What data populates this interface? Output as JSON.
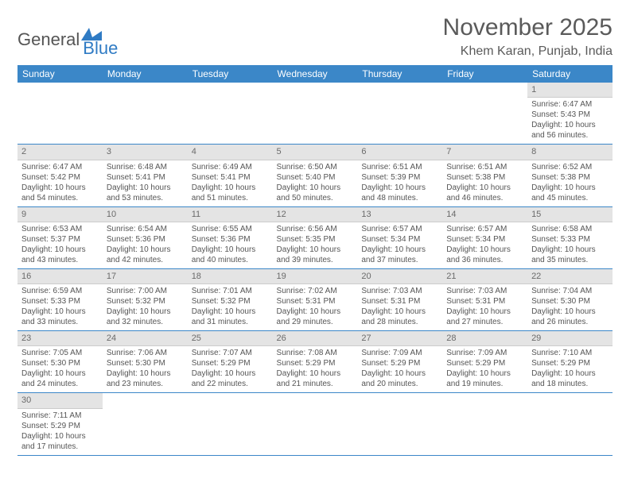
{
  "logo": {
    "general": "General",
    "blue": "Blue"
  },
  "title": "November 2025",
  "location": "Khem Karan, Punjab, India",
  "colors": {
    "header_bg": "#3b87c8",
    "header_text": "#ffffff",
    "daynum_bg": "#e4e4e4",
    "cell_border": "#3b87c8",
    "text": "#555555"
  },
  "day_names": [
    "Sunday",
    "Monday",
    "Tuesday",
    "Wednesday",
    "Thursday",
    "Friday",
    "Saturday"
  ],
  "weeks": [
    [
      {
        "empty": true
      },
      {
        "empty": true
      },
      {
        "empty": true
      },
      {
        "empty": true
      },
      {
        "empty": true
      },
      {
        "empty": true
      },
      {
        "num": "1",
        "sunrise": "Sunrise: 6:47 AM",
        "sunset": "Sunset: 5:43 PM",
        "daylight": "Daylight: 10 hours and 56 minutes."
      }
    ],
    [
      {
        "num": "2",
        "sunrise": "Sunrise: 6:47 AM",
        "sunset": "Sunset: 5:42 PM",
        "daylight": "Daylight: 10 hours and 54 minutes."
      },
      {
        "num": "3",
        "sunrise": "Sunrise: 6:48 AM",
        "sunset": "Sunset: 5:41 PM",
        "daylight": "Daylight: 10 hours and 53 minutes."
      },
      {
        "num": "4",
        "sunrise": "Sunrise: 6:49 AM",
        "sunset": "Sunset: 5:41 PM",
        "daylight": "Daylight: 10 hours and 51 minutes."
      },
      {
        "num": "5",
        "sunrise": "Sunrise: 6:50 AM",
        "sunset": "Sunset: 5:40 PM",
        "daylight": "Daylight: 10 hours and 50 minutes."
      },
      {
        "num": "6",
        "sunrise": "Sunrise: 6:51 AM",
        "sunset": "Sunset: 5:39 PM",
        "daylight": "Daylight: 10 hours and 48 minutes."
      },
      {
        "num": "7",
        "sunrise": "Sunrise: 6:51 AM",
        "sunset": "Sunset: 5:38 PM",
        "daylight": "Daylight: 10 hours and 46 minutes."
      },
      {
        "num": "8",
        "sunrise": "Sunrise: 6:52 AM",
        "sunset": "Sunset: 5:38 PM",
        "daylight": "Daylight: 10 hours and 45 minutes."
      }
    ],
    [
      {
        "num": "9",
        "sunrise": "Sunrise: 6:53 AM",
        "sunset": "Sunset: 5:37 PM",
        "daylight": "Daylight: 10 hours and 43 minutes."
      },
      {
        "num": "10",
        "sunrise": "Sunrise: 6:54 AM",
        "sunset": "Sunset: 5:36 PM",
        "daylight": "Daylight: 10 hours and 42 minutes."
      },
      {
        "num": "11",
        "sunrise": "Sunrise: 6:55 AM",
        "sunset": "Sunset: 5:36 PM",
        "daylight": "Daylight: 10 hours and 40 minutes."
      },
      {
        "num": "12",
        "sunrise": "Sunrise: 6:56 AM",
        "sunset": "Sunset: 5:35 PM",
        "daylight": "Daylight: 10 hours and 39 minutes."
      },
      {
        "num": "13",
        "sunrise": "Sunrise: 6:57 AM",
        "sunset": "Sunset: 5:34 PM",
        "daylight": "Daylight: 10 hours and 37 minutes."
      },
      {
        "num": "14",
        "sunrise": "Sunrise: 6:57 AM",
        "sunset": "Sunset: 5:34 PM",
        "daylight": "Daylight: 10 hours and 36 minutes."
      },
      {
        "num": "15",
        "sunrise": "Sunrise: 6:58 AM",
        "sunset": "Sunset: 5:33 PM",
        "daylight": "Daylight: 10 hours and 35 minutes."
      }
    ],
    [
      {
        "num": "16",
        "sunrise": "Sunrise: 6:59 AM",
        "sunset": "Sunset: 5:33 PM",
        "daylight": "Daylight: 10 hours and 33 minutes."
      },
      {
        "num": "17",
        "sunrise": "Sunrise: 7:00 AM",
        "sunset": "Sunset: 5:32 PM",
        "daylight": "Daylight: 10 hours and 32 minutes."
      },
      {
        "num": "18",
        "sunrise": "Sunrise: 7:01 AM",
        "sunset": "Sunset: 5:32 PM",
        "daylight": "Daylight: 10 hours and 31 minutes."
      },
      {
        "num": "19",
        "sunrise": "Sunrise: 7:02 AM",
        "sunset": "Sunset: 5:31 PM",
        "daylight": "Daylight: 10 hours and 29 minutes."
      },
      {
        "num": "20",
        "sunrise": "Sunrise: 7:03 AM",
        "sunset": "Sunset: 5:31 PM",
        "daylight": "Daylight: 10 hours and 28 minutes."
      },
      {
        "num": "21",
        "sunrise": "Sunrise: 7:03 AM",
        "sunset": "Sunset: 5:31 PM",
        "daylight": "Daylight: 10 hours and 27 minutes."
      },
      {
        "num": "22",
        "sunrise": "Sunrise: 7:04 AM",
        "sunset": "Sunset: 5:30 PM",
        "daylight": "Daylight: 10 hours and 26 minutes."
      }
    ],
    [
      {
        "num": "23",
        "sunrise": "Sunrise: 7:05 AM",
        "sunset": "Sunset: 5:30 PM",
        "daylight": "Daylight: 10 hours and 24 minutes."
      },
      {
        "num": "24",
        "sunrise": "Sunrise: 7:06 AM",
        "sunset": "Sunset: 5:30 PM",
        "daylight": "Daylight: 10 hours and 23 minutes."
      },
      {
        "num": "25",
        "sunrise": "Sunrise: 7:07 AM",
        "sunset": "Sunset: 5:29 PM",
        "daylight": "Daylight: 10 hours and 22 minutes."
      },
      {
        "num": "26",
        "sunrise": "Sunrise: 7:08 AM",
        "sunset": "Sunset: 5:29 PM",
        "daylight": "Daylight: 10 hours and 21 minutes."
      },
      {
        "num": "27",
        "sunrise": "Sunrise: 7:09 AM",
        "sunset": "Sunset: 5:29 PM",
        "daylight": "Daylight: 10 hours and 20 minutes."
      },
      {
        "num": "28",
        "sunrise": "Sunrise: 7:09 AM",
        "sunset": "Sunset: 5:29 PM",
        "daylight": "Daylight: 10 hours and 19 minutes."
      },
      {
        "num": "29",
        "sunrise": "Sunrise: 7:10 AM",
        "sunset": "Sunset: 5:29 PM",
        "daylight": "Daylight: 10 hours and 18 minutes."
      }
    ],
    [
      {
        "num": "30",
        "sunrise": "Sunrise: 7:11 AM",
        "sunset": "Sunset: 5:29 PM",
        "daylight": "Daylight: 10 hours and 17 minutes."
      },
      {
        "empty": true
      },
      {
        "empty": true
      },
      {
        "empty": true
      },
      {
        "empty": true
      },
      {
        "empty": true
      },
      {
        "empty": true
      }
    ]
  ]
}
